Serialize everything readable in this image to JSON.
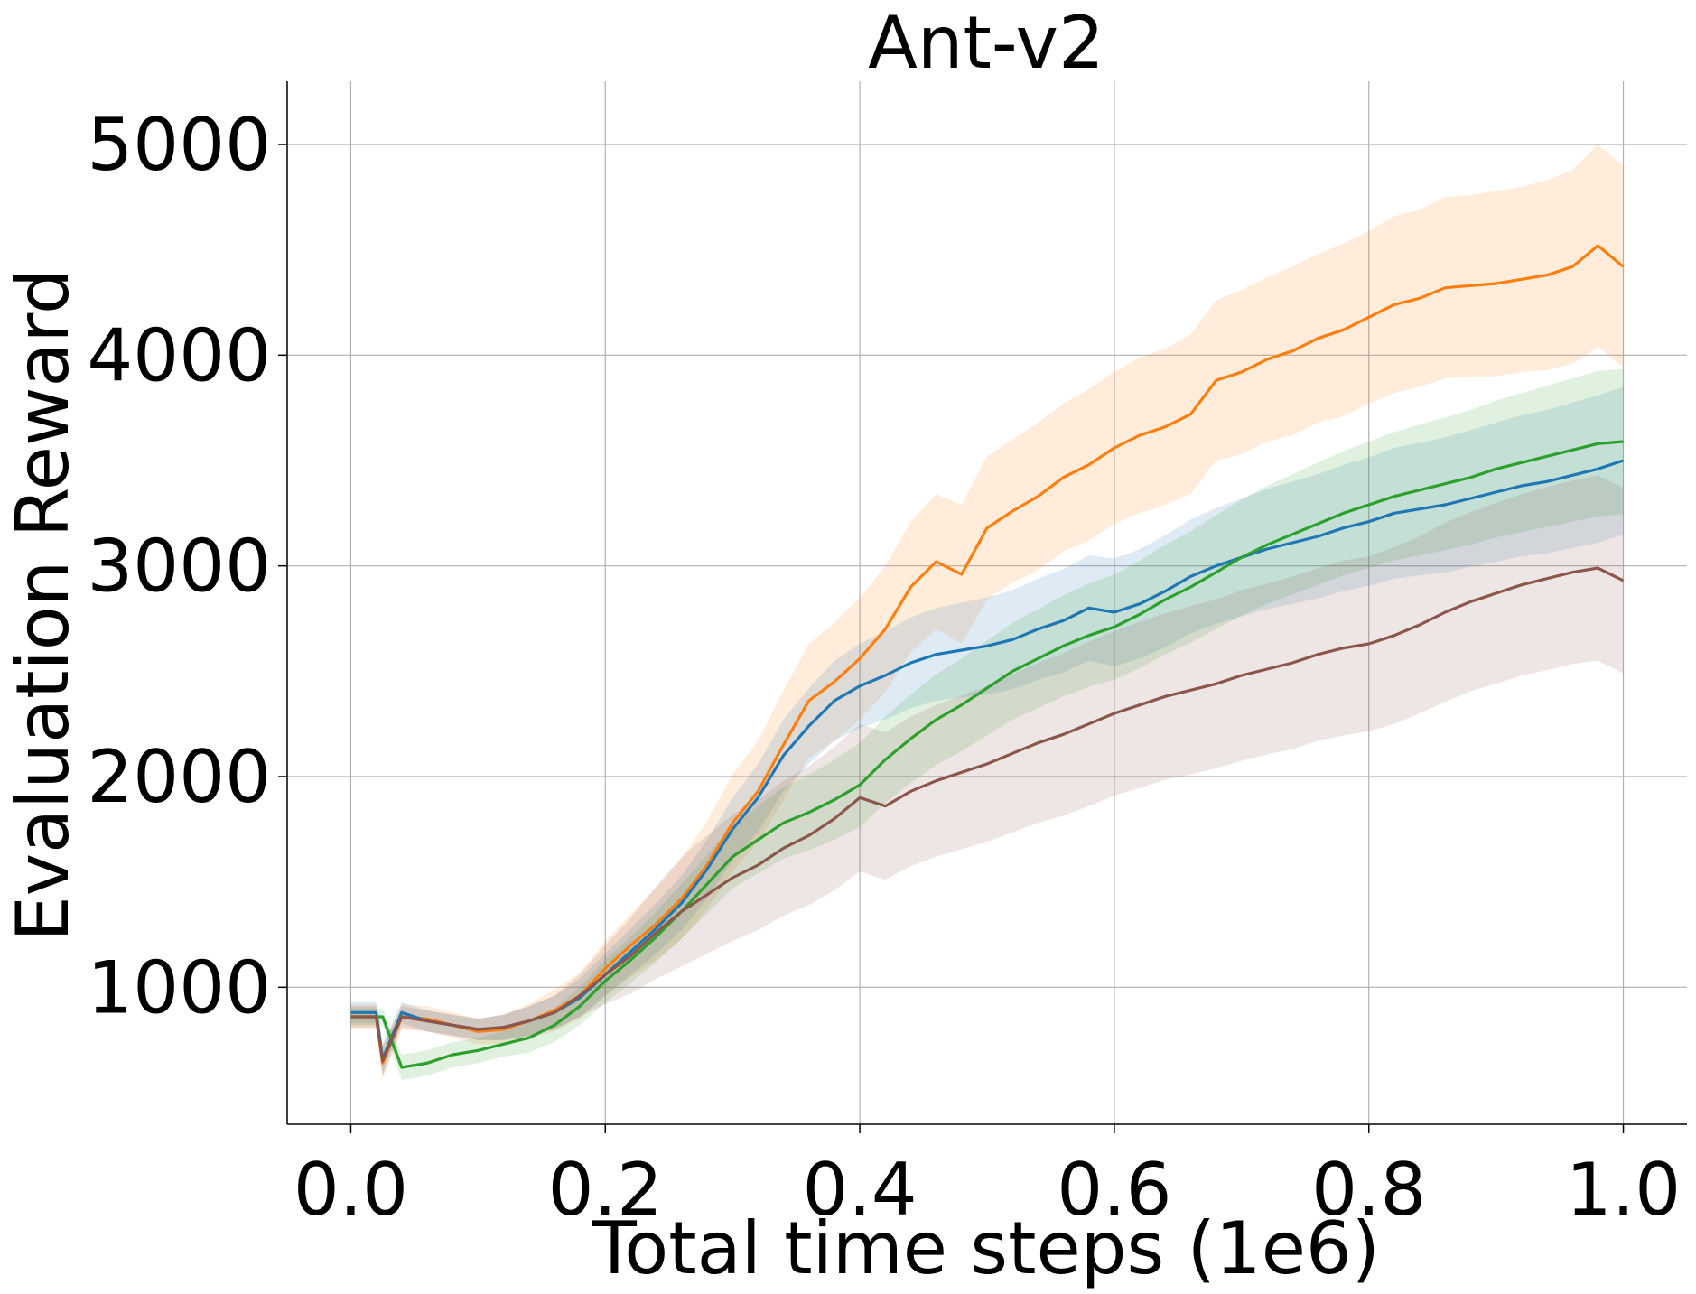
{
  "chart_data": {
    "type": "line",
    "title": "Ant-v2",
    "xlabel": "Total time steps (1e6)",
    "ylabel": "Evaluation Reward",
    "xlim": [
      -0.05,
      1.05
    ],
    "ylim": [
      350,
      5300
    ],
    "xticks": [
      0.0,
      0.2,
      0.4,
      0.6,
      0.8,
      1.0
    ],
    "xtick_labels": [
      "0.0",
      "0.2",
      "0.4",
      "0.6",
      "0.8",
      "1.0"
    ],
    "yticks": [
      1000,
      2000,
      3000,
      4000,
      5000
    ],
    "ytick_labels": [
      "1000",
      "2000",
      "3000",
      "4000",
      "5000"
    ],
    "grid": true,
    "x": [
      0.0,
      0.02,
      0.025,
      0.04,
      0.06,
      0.08,
      0.1,
      0.12,
      0.14,
      0.16,
      0.18,
      0.2,
      0.22,
      0.24,
      0.26,
      0.28,
      0.3,
      0.32,
      0.34,
      0.36,
      0.38,
      0.4,
      0.42,
      0.44,
      0.46,
      0.48,
      0.5,
      0.52,
      0.54,
      0.56,
      0.58,
      0.6,
      0.62,
      0.64,
      0.66,
      0.68,
      0.7,
      0.72,
      0.74,
      0.76,
      0.78,
      0.8,
      0.82,
      0.84,
      0.86,
      0.88,
      0.9,
      0.92,
      0.94,
      0.96,
      0.98,
      1.0
    ],
    "series": [
      {
        "name": "orange",
        "color": "#ff7f0e",
        "values": [
          860,
          860,
          640,
          860,
          850,
          820,
          790,
          800,
          840,
          890,
          960,
          1090,
          1200,
          1300,
          1420,
          1580,
          1780,
          1930,
          2150,
          2360,
          2450,
          2560,
          2700,
          2900,
          3020,
          2960,
          3180,
          3260,
          3330,
          3420,
          3480,
          3560,
          3620,
          3660,
          3720,
          3880,
          3920,
          3980,
          4020,
          4080,
          4120,
          4180,
          4240,
          4270,
          4320,
          4330,
          4340,
          4360,
          4380,
          4420,
          4520,
          4420
        ],
        "band": [
          60,
          60,
          80,
          60,
          60,
          60,
          60,
          70,
          80,
          100,
          110,
          130,
          150,
          170,
          190,
          210,
          230,
          240,
          260,
          270,
          280,
          290,
          300,
          310,
          320,
          330,
          340,
          340,
          350,
          350,
          360,
          360,
          370,
          370,
          380,
          380,
          390,
          390,
          400,
          400,
          410,
          410,
          420,
          420,
          430,
          430,
          440,
          440,
          450,
          460,
          480,
          480
        ]
      },
      {
        "name": "blue",
        "color": "#1f77b4",
        "values": [
          880,
          880,
          660,
          880,
          840,
          820,
          800,
          810,
          840,
          880,
          950,
          1060,
          1170,
          1280,
          1400,
          1560,
          1750,
          1900,
          2100,
          2240,
          2360,
          2430,
          2480,
          2540,
          2580,
          2600,
          2620,
          2650,
          2700,
          2740,
          2800,
          2780,
          2820,
          2880,
          2950,
          3000,
          3040,
          3080,
          3110,
          3140,
          3180,
          3210,
          3250,
          3270,
          3290,
          3320,
          3350,
          3380,
          3400,
          3430,
          3460,
          3500
        ],
        "band": [
          50,
          50,
          70,
          50,
          50,
          50,
          50,
          60,
          70,
          80,
          90,
          100,
          110,
          120,
          130,
          140,
          150,
          160,
          170,
          180,
          190,
          200,
          210,
          215,
          220,
          225,
          230,
          235,
          240,
          245,
          250,
          255,
          260,
          265,
          270,
          275,
          280,
          285,
          290,
          295,
          300,
          305,
          310,
          315,
          320,
          325,
          330,
          335,
          340,
          345,
          350,
          350
        ]
      },
      {
        "name": "green",
        "color": "#2ca02c",
        "values": [
          860,
          860,
          860,
          620,
          640,
          680,
          700,
          730,
          760,
          820,
          910,
          1030,
          1130,
          1240,
          1360,
          1490,
          1620,
          1700,
          1780,
          1830,
          1890,
          1960,
          2080,
          2180,
          2270,
          2340,
          2420,
          2500,
          2560,
          2620,
          2670,
          2710,
          2770,
          2840,
          2900,
          2970,
          3040,
          3100,
          3150,
          3200,
          3250,
          3290,
          3330,
          3360,
          3390,
          3420,
          3460,
          3490,
          3520,
          3550,
          3580,
          3590
        ],
        "band": [
          40,
          40,
          40,
          60,
          60,
          60,
          60,
          60,
          70,
          80,
          90,
          100,
          110,
          120,
          130,
          140,
          150,
          160,
          170,
          180,
          190,
          200,
          205,
          210,
          215,
          220,
          225,
          230,
          235,
          240,
          245,
          250,
          255,
          260,
          265,
          270,
          275,
          280,
          285,
          290,
          295,
          300,
          305,
          310,
          315,
          320,
          325,
          330,
          335,
          340,
          345,
          345
        ]
      },
      {
        "name": "brown",
        "color": "#8c564b",
        "values": [
          860,
          860,
          650,
          860,
          840,
          820,
          800,
          810,
          840,
          880,
          960,
          1060,
          1150,
          1260,
          1360,
          1440,
          1520,
          1580,
          1660,
          1720,
          1800,
          1900,
          1860,
          1930,
          1980,
          2020,
          2060,
          2110,
          2160,
          2200,
          2250,
          2300,
          2340,
          2380,
          2410,
          2440,
          2480,
          2510,
          2540,
          2580,
          2610,
          2630,
          2670,
          2720,
          2780,
          2830,
          2870,
          2910,
          2940,
          2970,
          2990,
          2930
        ],
        "band": [
          50,
          50,
          70,
          50,
          50,
          50,
          50,
          60,
          70,
          80,
          100,
          140,
          180,
          220,
          260,
          280,
          300,
          310,
          320,
          330,
          340,
          350,
          350,
          355,
          360,
          365,
          370,
          375,
          380,
          385,
          390,
          390,
          395,
          395,
          400,
          400,
          405,
          405,
          410,
          410,
          415,
          415,
          420,
          420,
          425,
          425,
          430,
          430,
          435,
          435,
          440,
          440
        ]
      }
    ]
  }
}
